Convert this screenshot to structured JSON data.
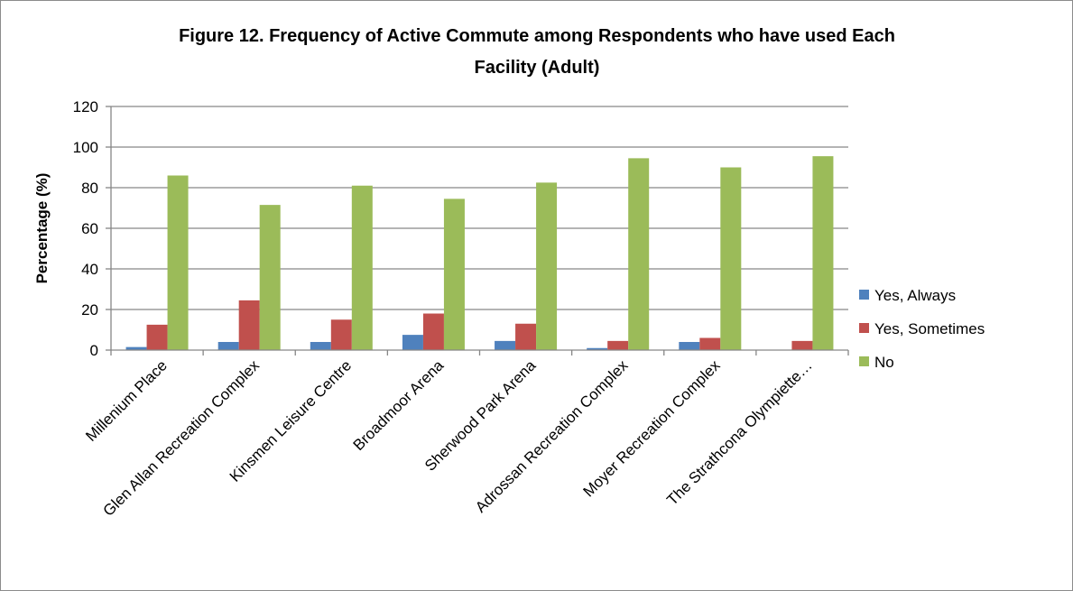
{
  "chart_data": {
    "type": "bar",
    "title_lines": [
      "Figure 12. Frequency of Active Commute among Respondents who have used Each",
      "Facility (Adult)"
    ],
    "xlabel": "",
    "ylabel": "Percentage (%)",
    "ylim": [
      0,
      120
    ],
    "yticks": [
      0,
      20,
      40,
      60,
      80,
      100,
      120
    ],
    "grid": true,
    "legend_position": "right",
    "categories": [
      "Millenium Place",
      "Glen Allan Recreation Complex",
      "Kinsmen Leisure Centre",
      "Broadmoor Arena",
      "Sherwood Park Arena",
      "Adrossan Recreation Complex",
      "Moyer Recreation Complex",
      "The Strathcona Olympiette…"
    ],
    "series": [
      {
        "name": "Yes, Always",
        "color": "#4f81bd",
        "values": [
          1.5,
          4,
          4,
          7.5,
          4.5,
          1,
          4,
          0
        ]
      },
      {
        "name": "Yes, Sometimes",
        "color": "#c0504d",
        "values": [
          12.5,
          24.5,
          15,
          18,
          13,
          4.5,
          6,
          4.5
        ]
      },
      {
        "name": "No",
        "color": "#9bbb59",
        "values": [
          86,
          71.5,
          81,
          74.5,
          82.5,
          94.5,
          90,
          95.5
        ]
      }
    ]
  }
}
